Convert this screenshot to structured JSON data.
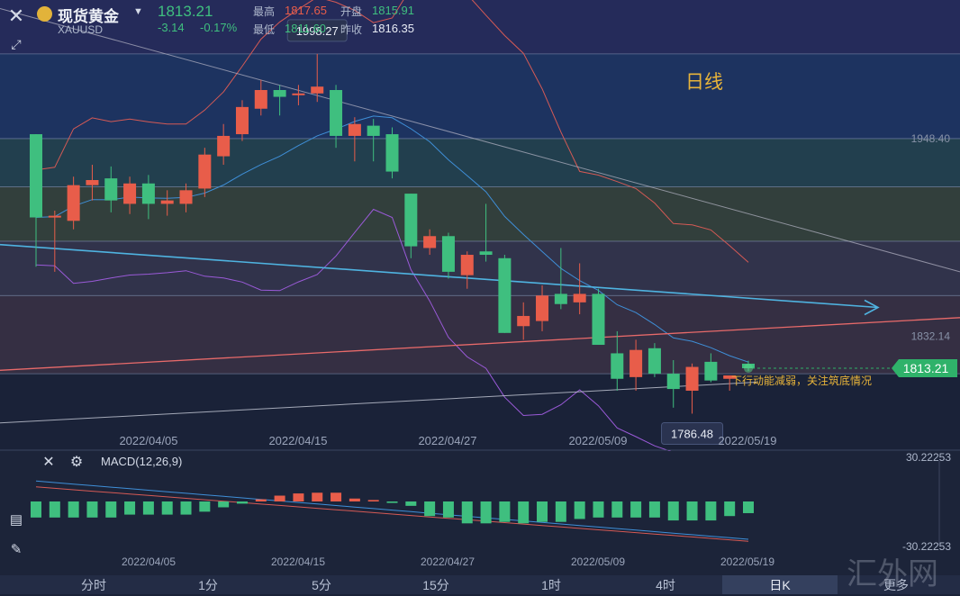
{
  "header": {
    "symbol_name": "现货黄金",
    "symbol_code": "XAUUSD",
    "last_price": "1813.21",
    "change": "-3.14",
    "change_pct": "-0.17%",
    "high_label": "最高",
    "high_value": "1817.65",
    "open_label": "开盘",
    "open_value": "1815.91",
    "low_label": "最低",
    "low_value": "1811.60",
    "prev_close_label": "昨收",
    "prev_close_value": "1816.35"
  },
  "annotations": {
    "period_label": "日线",
    "high_marker": "1998.27",
    "low_marker": "1786.48",
    "current_price_tag": "1813.21",
    "commentary": "下行动能减弱，关注筑底情况"
  },
  "watermark": "汇外网",
  "tabs": [
    {
      "label": "分时",
      "active": false
    },
    {
      "label": "1分",
      "active": false
    },
    {
      "label": "5分",
      "active": false
    },
    {
      "label": "15分",
      "active": false
    },
    {
      "label": "1时",
      "active": false
    },
    {
      "label": "4时",
      "active": false
    },
    {
      "label": "日K",
      "active": true
    },
    {
      "label": "更多",
      "active": false
    }
  ],
  "colors": {
    "up": "#e85d4a",
    "down": "#3fbf7f",
    "trendline_cyan": "#4fb3e0",
    "trendline_red": "#e86a6a",
    "accent_green": "#2fb26a"
  },
  "chart_data": [
    {
      "type": "candlestick",
      "title": "",
      "x_tick_labels": [
        "2022/04/05",
        "2022/04/15",
        "2022/04/27",
        "2022/05/09",
        "2022/05/19"
      ],
      "y_tick_labels": [
        "1948.40",
        "1832.14"
      ],
      "ylim": [
        1765,
        2030
      ],
      "candles": [
        {
          "open": 1951,
          "close": 1902,
          "high": 1951,
          "low": 1873
        },
        {
          "open": 1903,
          "close": 1903,
          "high": 1906,
          "low": 1870
        },
        {
          "open": 1900,
          "close": 1921,
          "high": 1926,
          "low": 1895
        },
        {
          "open": 1921,
          "close": 1924,
          "high": 1933,
          "low": 1912
        },
        {
          "open": 1925,
          "close": 1912,
          "high": 1932,
          "low": 1905
        },
        {
          "open": 1910,
          "close": 1922,
          "high": 1926,
          "low": 1904
        },
        {
          "open": 1922,
          "close": 1910,
          "high": 1927,
          "low": 1901
        },
        {
          "open": 1910,
          "close": 1912,
          "high": 1918,
          "low": 1903
        },
        {
          "open": 1910,
          "close": 1918,
          "high": 1922,
          "low": 1905
        },
        {
          "open": 1919,
          "close": 1939,
          "high": 1943,
          "low": 1914
        },
        {
          "open": 1938,
          "close": 1950,
          "high": 1957,
          "low": 1933
        },
        {
          "open": 1951,
          "close": 1967,
          "high": 1971,
          "low": 1947
        },
        {
          "open": 1966,
          "close": 1977,
          "high": 1983,
          "low": 1962
        },
        {
          "open": 1977,
          "close": 1973,
          "high": 1980,
          "low": 1962
        },
        {
          "open": 1975,
          "close": 1975,
          "high": 1980,
          "low": 1968
        },
        {
          "open": 1975,
          "close": 1979,
          "high": 1998.27,
          "low": 1970
        },
        {
          "open": 1977,
          "close": 1950,
          "high": 1980,
          "low": 1943
        },
        {
          "open": 1950,
          "close": 1957,
          "high": 1961,
          "low": 1935
        },
        {
          "open": 1956,
          "close": 1950,
          "high": 1960,
          "low": 1935
        },
        {
          "open": 1951,
          "close": 1929,
          "high": 1955,
          "low": 1925
        },
        {
          "open": 1916,
          "close": 1885,
          "high": 1916,
          "low": 1878
        },
        {
          "open": 1884,
          "close": 1891,
          "high": 1895,
          "low": 1880
        },
        {
          "open": 1891,
          "close": 1870,
          "high": 1893,
          "low": 1866
        },
        {
          "open": 1868,
          "close": 1880,
          "high": 1882,
          "low": 1860
        },
        {
          "open": 1882,
          "close": 1880,
          "high": 1910,
          "low": 1876
        },
        {
          "open": 1878,
          "close": 1834,
          "high": 1880,
          "low": 1834
        },
        {
          "open": 1838,
          "close": 1844,
          "high": 1852,
          "low": 1830
        },
        {
          "open": 1841,
          "close": 1856,
          "high": 1862,
          "low": 1835
        },
        {
          "open": 1857,
          "close": 1851,
          "high": 1884,
          "low": 1848
        },
        {
          "open": 1852,
          "close": 1857,
          "high": 1875,
          "low": 1845
        },
        {
          "open": 1857,
          "close": 1827,
          "high": 1860,
          "low": 1827
        },
        {
          "open": 1822,
          "close": 1807,
          "high": 1835,
          "low": 1800
        },
        {
          "open": 1808,
          "close": 1824,
          "high": 1830,
          "low": 1800
        },
        {
          "open": 1825,
          "close": 1810,
          "high": 1828,
          "low": 1808
        },
        {
          "open": 1810,
          "close": 1801,
          "high": 1818,
          "low": 1790
        },
        {
          "open": 1800,
          "close": 1814,
          "high": 1816,
          "low": 1786.48
        },
        {
          "open": 1817,
          "close": 1806,
          "high": 1822,
          "low": 1805
        },
        {
          "open": 1807,
          "close": 1809,
          "high": 1809,
          "low": 1800
        },
        {
          "open": 1815.91,
          "close": 1813.21,
          "high": 1817.65,
          "low": 1811.6
        }
      ]
    },
    {
      "type": "bar",
      "title": "MACD(12,26,9)",
      "x_tick_labels": [
        "2022/04/05",
        "2022/04/15",
        "2022/04/27",
        "2022/05/09",
        "2022/05/19"
      ],
      "y_tick_labels": [
        "30.22253",
        "-30.22253"
      ],
      "ylim": [
        -30.22253,
        30.22253
      ],
      "values": [
        -11,
        -11,
        -11,
        -11,
        -11,
        -9,
        -9,
        -9,
        -9,
        -7,
        -4,
        -1.5,
        1.5,
        4,
        5.5,
        6,
        6,
        2,
        1,
        -1,
        -3,
        -10,
        -11,
        -15,
        -15,
        -14,
        -15,
        -14,
        -14,
        -12,
        -11,
        -11,
        -11,
        -11,
        -13,
        -13,
        -13,
        -10,
        -8
      ]
    }
  ]
}
